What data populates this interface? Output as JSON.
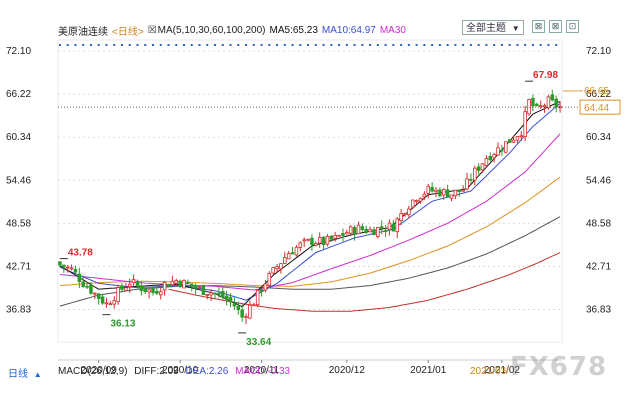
{
  "header": {
    "title": "美原油连续",
    "period_tag": "<日线>",
    "ma_checkbox": "☒",
    "ma_params": "MA(5,10,30,60,100,200)",
    "ma5_label": "MA5:65.23",
    "ma10_label": "MA10:64.97",
    "ma30_label": "MA30",
    "theme_button": "全部主题",
    "theme_arrow": "▼"
  },
  "controls": {
    "expand_icon": "⊠",
    "close_icon": "⊠",
    "settings_icon": "⊡"
  },
  "footer": {
    "period_tab": "日线",
    "period_arrow": "▲",
    "macd_params": "MACD(26,12,9)",
    "diff_label": "DIFF:2.09",
    "dea_label": "DEA:2.26",
    "macd_label": "MACD:-0.33",
    "date_tag": "2021/03/",
    "watermark": "FX678"
  },
  "colors": {
    "up": "#d82a2a",
    "down": "#2d9a2d",
    "ma5": "#111111",
    "ma10": "#3a4fd0",
    "ma30": "#d02ad0",
    "ma60": "#e09020",
    "ma100": "#555555",
    "ma200": "#c0302a",
    "current": "#e09020",
    "grid": "#d8dde2",
    "dots": "#2a64c8"
  },
  "chart_data": {
    "type": "candlestick",
    "y_ticks": [
      "72.10",
      "66.22",
      "60.34",
      "54.46",
      "48.58",
      "42.71",
      "36.83"
    ],
    "y_tick_values": [
      72.1,
      66.22,
      60.34,
      54.46,
      48.58,
      42.71,
      36.83
    ],
    "ylim": [
      32.4,
      73.6
    ],
    "x_ticks": [
      "2020/09",
      "2020/10",
      "2020/11",
      "2020/12",
      "2021/01",
      "2021/02"
    ],
    "x_tick_index": [
      10,
      31,
      52,
      74,
      95,
      114
    ],
    "n_bars": 130,
    "annotations": [
      {
        "label": "43.78",
        "value": 43.78,
        "index": 1,
        "color": "#d82a2a"
      },
      {
        "label": "36.13",
        "value": 36.13,
        "index": 12,
        "color": "#2d9a2d"
      },
      {
        "label": "33.64",
        "value": 33.64,
        "index": 47,
        "color": "#2d9a2d"
      },
      {
        "label": "67.98",
        "value": 67.98,
        "index": 121,
        "color": "#d82a2a"
      }
    ],
    "current_price": {
      "label": "64.44",
      "value": 64.44
    },
    "high_marker": {
      "label": "66.65",
      "value": 66.65
    },
    "close_path": [
      [
        0,
        42.9
      ],
      [
        3,
        42.3
      ],
      [
        6,
        40.5
      ],
      [
        9,
        39.0
      ],
      [
        12,
        37.6
      ],
      [
        15,
        39.2
      ],
      [
        18,
        40.6
      ],
      [
        21,
        39.8
      ],
      [
        24,
        39.2
      ],
      [
        27,
        40.3
      ],
      [
        30,
        40.8
      ],
      [
        33,
        40.2
      ],
      [
        36,
        39.6
      ],
      [
        39,
        39.2
      ],
      [
        42,
        38.6
      ],
      [
        45,
        37.4
      ],
      [
        47,
        35.8
      ],
      [
        50,
        37.9
      ],
      [
        53,
        40.6
      ],
      [
        56,
        42.7
      ],
      [
        59,
        44.6
      ],
      [
        62,
        45.6
      ],
      [
        65,
        46.2
      ],
      [
        68,
        46.0
      ],
      [
        71,
        46.5
      ],
      [
        74,
        47.4
      ],
      [
        77,
        47.9
      ],
      [
        80,
        47.6
      ],
      [
        83,
        48.0
      ],
      [
        86,
        48.2
      ],
      [
        89,
        50.6
      ],
      [
        92,
        52.3
      ],
      [
        95,
        53.1
      ],
      [
        98,
        52.9
      ],
      [
        101,
        52.6
      ],
      [
        104,
        53.2
      ],
      [
        107,
        55.6
      ],
      [
        110,
        57.6
      ],
      [
        113,
        58.7
      ],
      [
        116,
        59.9
      ],
      [
        119,
        61.2
      ],
      [
        121,
        65.2
      ],
      [
        123,
        64.0
      ],
      [
        126,
        65.2
      ],
      [
        129,
        64.44
      ]
    ],
    "ma_paths": {
      "ma5": [
        [
          0,
          42.8
        ],
        [
          10,
          39.6
        ],
        [
          20,
          40.0
        ],
        [
          30,
          40.3
        ],
        [
          40,
          39.0
        ],
        [
          47,
          37.2
        ],
        [
          55,
          41.5
        ],
        [
          65,
          45.5
        ],
        [
          75,
          47.0
        ],
        [
          85,
          48.0
        ],
        [
          95,
          52.5
        ],
        [
          105,
          53.3
        ],
        [
          115,
          59.2
        ],
        [
          122,
          63.5
        ],
        [
          129,
          65.23
        ]
      ],
      "ma10": [
        [
          0,
          42.6
        ],
        [
          10,
          40.4
        ],
        [
          20,
          39.8
        ],
        [
          30,
          40.1
        ],
        [
          40,
          39.4
        ],
        [
          48,
          38.1
        ],
        [
          56,
          40.4
        ],
        [
          66,
          44.6
        ],
        [
          76,
          46.6
        ],
        [
          86,
          47.8
        ],
        [
          96,
          51.6
        ],
        [
          106,
          53.0
        ],
        [
          116,
          58.2
        ],
        [
          122,
          61.8
        ],
        [
          129,
          64.97
        ]
      ],
      "ma30": [
        [
          0,
          41.6
        ],
        [
          10,
          41.1
        ],
        [
          20,
          40.5
        ],
        [
          30,
          40.2
        ],
        [
          40,
          40.0
        ],
        [
          50,
          39.5
        ],
        [
          60,
          40.5
        ],
        [
          70,
          42.4
        ],
        [
          80,
          44.2
        ],
        [
          90,
          46.3
        ],
        [
          100,
          48.6
        ],
        [
          110,
          51.6
        ],
        [
          120,
          55.6
        ],
        [
          129,
          60.8
        ]
      ],
      "ma60": [
        [
          0,
          40.1
        ],
        [
          10,
          40.5
        ],
        [
          20,
          40.7
        ],
        [
          30,
          40.6
        ],
        [
          40,
          40.4
        ],
        [
          50,
          40.1
        ],
        [
          60,
          40.0
        ],
        [
          70,
          40.6
        ],
        [
          80,
          41.8
        ],
        [
          90,
          43.5
        ],
        [
          100,
          45.5
        ],
        [
          110,
          48.1
        ],
        [
          120,
          51.4
        ],
        [
          129,
          54.9
        ]
      ],
      "ma100": [
        [
          0,
          37.3
        ],
        [
          10,
          38.8
        ],
        [
          20,
          39.6
        ],
        [
          30,
          40.0
        ],
        [
          40,
          40.1
        ],
        [
          50,
          39.9
        ],
        [
          60,
          39.6
        ],
        [
          70,
          39.6
        ],
        [
          80,
          40.1
        ],
        [
          90,
          41.1
        ],
        [
          100,
          42.5
        ],
        [
          110,
          44.4
        ],
        [
          120,
          46.9
        ],
        [
          129,
          49.5
        ]
      ],
      "ma200": [
        [
          28,
          39.6
        ],
        [
          35,
          38.8
        ],
        [
          45,
          37.8
        ],
        [
          55,
          37.0
        ],
        [
          65,
          36.6
        ],
        [
          75,
          36.6
        ],
        [
          85,
          37.1
        ],
        [
          95,
          38.1
        ],
        [
          105,
          39.6
        ],
        [
          115,
          41.4
        ],
        [
          122,
          42.9
        ],
        [
          129,
          44.6
        ]
      ]
    }
  }
}
